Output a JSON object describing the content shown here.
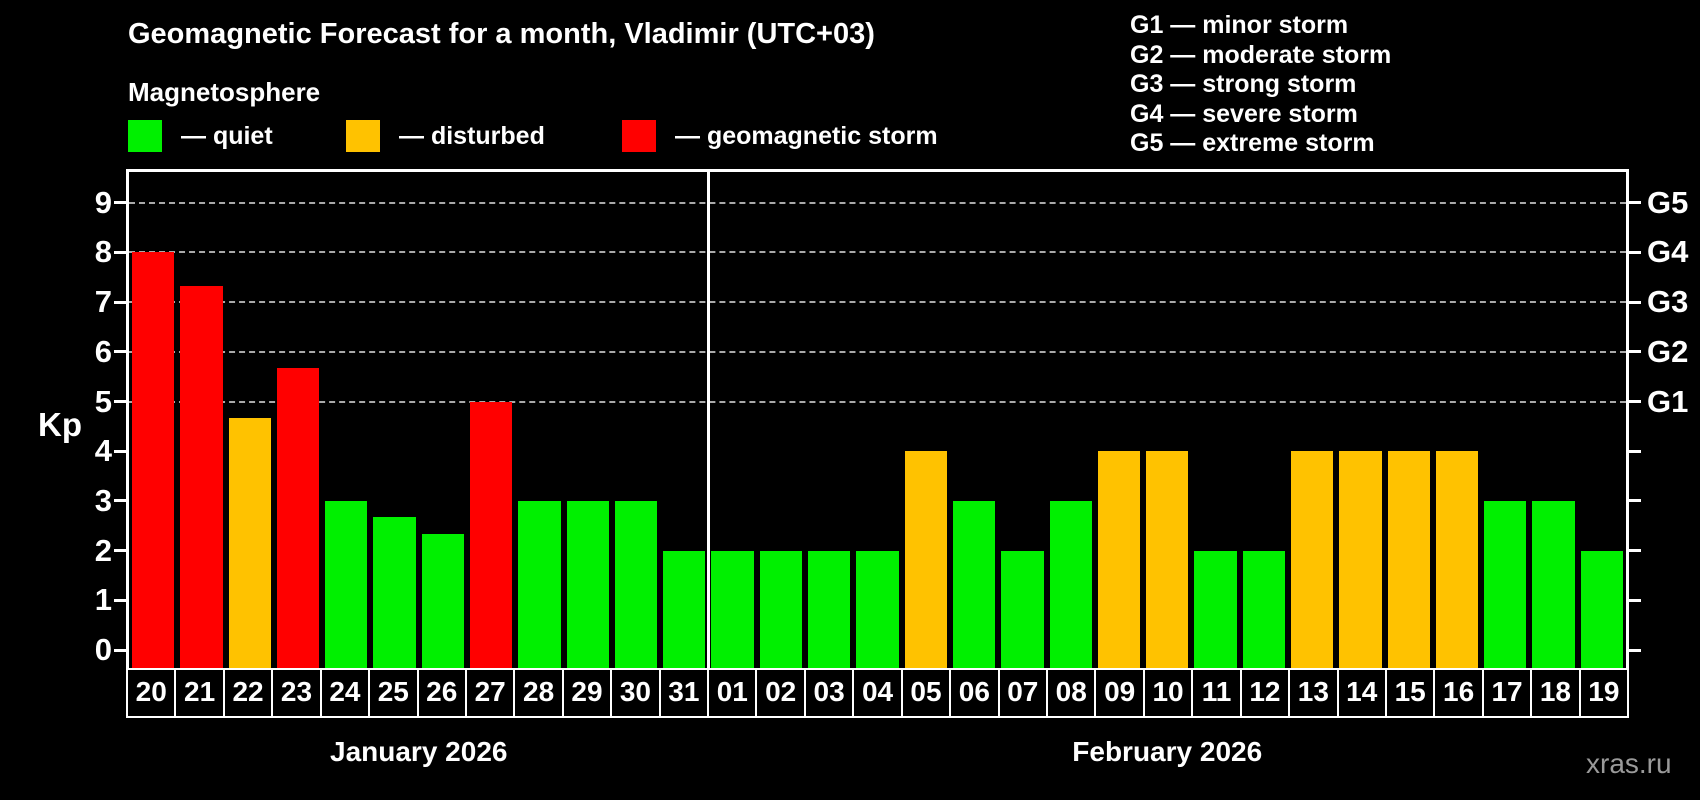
{
  "title": "Geomagnetic Forecast for a month, Vladimir (UTC+03)",
  "legend": {
    "title": "Magnetosphere",
    "items": [
      {
        "key": "quiet",
        "label": "— quiet"
      },
      {
        "key": "disturbed",
        "label": "— disturbed"
      },
      {
        "key": "storm",
        "label": "— geomagnetic storm"
      }
    ]
  },
  "g_scale_legend": [
    "G1 — minor storm",
    "G2 — moderate storm",
    "G3 — strong storm",
    "G4 — severe storm",
    "G5 — extreme storm"
  ],
  "watermark": "xras.ru",
  "colors": {
    "quiet": "#00f000",
    "disturbed": "#ffc200",
    "storm": "#ff0000",
    "background": "#000000",
    "grid": "#a9a9a9",
    "frame": "#ffffff",
    "watermark": "#9a9a9a"
  },
  "chart_data": {
    "type": "bar",
    "ylabel": "Kp",
    "ylim": [
      0,
      9.6
    ],
    "yticks": [
      0,
      1,
      2,
      3,
      4,
      5,
      6,
      7,
      8,
      9
    ],
    "grid_levels": [
      5,
      6,
      7,
      8,
      9
    ],
    "grid_style": "dashed",
    "legend_position": "top",
    "right_axis": [
      {
        "value": 5,
        "label": "G1"
      },
      {
        "value": 6,
        "label": "G2"
      },
      {
        "value": 7,
        "label": "G3"
      },
      {
        "value": 8,
        "label": "G4"
      },
      {
        "value": 9,
        "label": "G5"
      }
    ],
    "months": [
      {
        "label": "January 2026",
        "days": [
          {
            "day": "20",
            "kp": 8.0,
            "status": "storm"
          },
          {
            "day": "21",
            "kp": 7.33,
            "status": "storm"
          },
          {
            "day": "22",
            "kp": 4.67,
            "status": "disturbed"
          },
          {
            "day": "23",
            "kp": 5.67,
            "status": "storm"
          },
          {
            "day": "24",
            "kp": 3.0,
            "status": "quiet"
          },
          {
            "day": "25",
            "kp": 2.67,
            "status": "quiet"
          },
          {
            "day": "26",
            "kp": 2.33,
            "status": "quiet"
          },
          {
            "day": "27",
            "kp": 5.0,
            "status": "storm"
          },
          {
            "day": "28",
            "kp": 3.0,
            "status": "quiet"
          },
          {
            "day": "29",
            "kp": 3.0,
            "status": "quiet"
          },
          {
            "day": "30",
            "kp": 3.0,
            "status": "quiet"
          },
          {
            "day": "31",
            "kp": 2.0,
            "status": "quiet"
          }
        ]
      },
      {
        "label": "February 2026",
        "days": [
          {
            "day": "01",
            "kp": 2.0,
            "status": "quiet"
          },
          {
            "day": "02",
            "kp": 2.0,
            "status": "quiet"
          },
          {
            "day": "03",
            "kp": 2.0,
            "status": "quiet"
          },
          {
            "day": "04",
            "kp": 2.0,
            "status": "quiet"
          },
          {
            "day": "05",
            "kp": 4.0,
            "status": "disturbed"
          },
          {
            "day": "06",
            "kp": 3.0,
            "status": "quiet"
          },
          {
            "day": "07",
            "kp": 2.0,
            "status": "quiet"
          },
          {
            "day": "08",
            "kp": 3.0,
            "status": "quiet"
          },
          {
            "day": "09",
            "kp": 4.0,
            "status": "disturbed"
          },
          {
            "day": "10",
            "kp": 4.0,
            "status": "disturbed"
          },
          {
            "day": "11",
            "kp": 2.0,
            "status": "quiet"
          },
          {
            "day": "12",
            "kp": 2.0,
            "status": "quiet"
          },
          {
            "day": "13",
            "kp": 4.0,
            "status": "disturbed"
          },
          {
            "day": "14",
            "kp": 4.0,
            "status": "disturbed"
          },
          {
            "day": "15",
            "kp": 4.0,
            "status": "disturbed"
          },
          {
            "day": "16",
            "kp": 4.0,
            "status": "disturbed"
          },
          {
            "day": "17",
            "kp": 3.0,
            "status": "quiet"
          },
          {
            "day": "18",
            "kp": 3.0,
            "status": "quiet"
          },
          {
            "day": "19",
            "kp": 2.0,
            "status": "quiet"
          }
        ]
      }
    ]
  }
}
